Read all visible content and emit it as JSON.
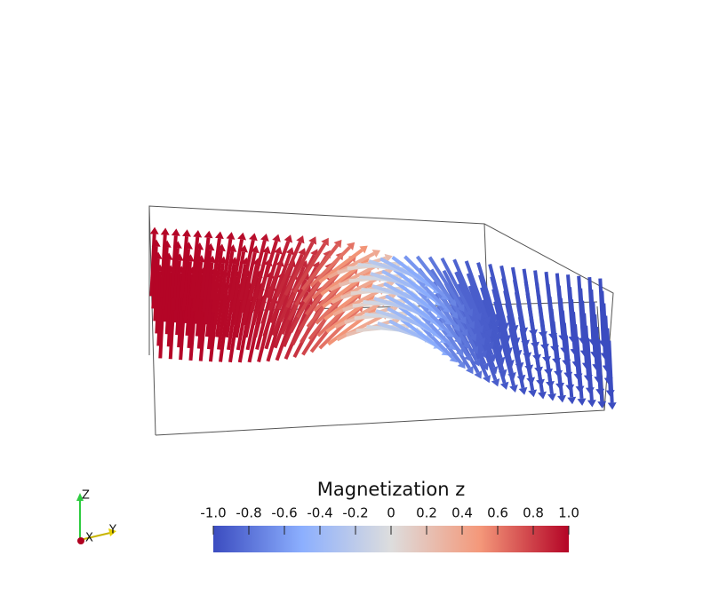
{
  "colorbar": {
    "title": "Magnetization z",
    "lim": [
      -1,
      1
    ],
    "ticks": [
      {
        "value": -1,
        "label": "-1.0"
      },
      -0.8,
      -0.6,
      -0.4,
      -0.2,
      0,
      0.2,
      0.4,
      0.6,
      0.8,
      {
        "value": 1,
        "label": "1.0"
      }
    ]
  },
  "axes": {
    "z": "Z",
    "x": "X",
    "y": "Y"
  }
}
